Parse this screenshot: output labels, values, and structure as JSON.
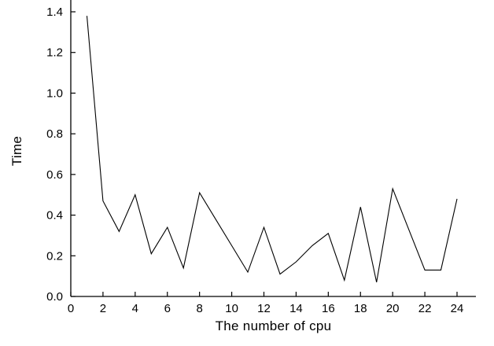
{
  "chart_data": {
    "type": "line",
    "title": "",
    "xlabel": "The number of cpu",
    "ylabel": "Time",
    "x": [
      1,
      2,
      3,
      4,
      5,
      6,
      7,
      8,
      9,
      10,
      11,
      12,
      13,
      14,
      15,
      16,
      17,
      18,
      19,
      20,
      21,
      22,
      23,
      24
    ],
    "y": [
      1.38,
      0.47,
      0.32,
      0.5,
      0.21,
      0.34,
      0.14,
      0.51,
      0.38,
      0.25,
      0.12,
      0.34,
      0.11,
      0.17,
      0.25,
      0.31,
      0.08,
      0.44,
      0.07,
      0.53,
      0.33,
      0.13,
      0.13,
      0.48
    ],
    "xlim": [
      0,
      25.2
    ],
    "ylim": [
      0,
      1.4
    ],
    "x_ticks": [
      0,
      2,
      4,
      6,
      8,
      10,
      12,
      14,
      16,
      18,
      20,
      22,
      24
    ],
    "x_tick_labels": [
      "0",
      "2",
      "4",
      "6",
      "8",
      "10",
      "12",
      "14",
      "16",
      "18",
      "20",
      "22",
      "24"
    ],
    "y_ticks": [
      0.0,
      0.2,
      0.4,
      0.6,
      0.8,
      1.0,
      1.2,
      1.4
    ],
    "y_tick_labels": [
      "0.0",
      "0.2",
      "0.4",
      "0.6",
      "0.8",
      "1.0",
      "1.2",
      "1.4"
    ],
    "grid": false,
    "legend": false,
    "line_color": "#000000",
    "axis_color": "#000000",
    "background": "#ffffff"
  }
}
